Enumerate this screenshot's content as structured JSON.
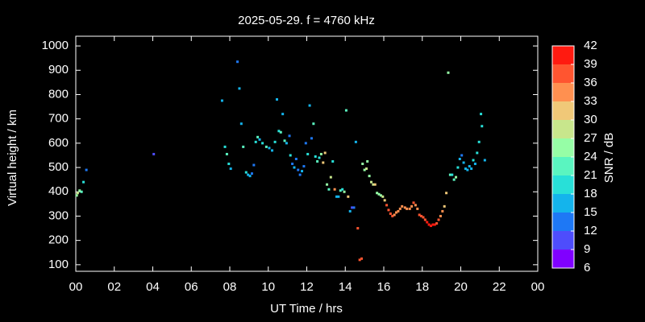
{
  "chart_data": {
    "type": "scatter",
    "title": "2025-05-29. f = 4760 kHz",
    "x_label": "UT Time / hrs",
    "y_label": "Virtual height / km",
    "xlim": [
      0,
      24
    ],
    "xticks": [
      {
        "value": 0,
        "label": "00"
      },
      {
        "value": 2,
        "label": "02"
      },
      {
        "value": 4,
        "label": "04"
      },
      {
        "value": 6,
        "label": "06"
      },
      {
        "value": 8,
        "label": "08"
      },
      10,
      12,
      14,
      16,
      18,
      20,
      22,
      {
        "value": 24,
        "label": "00"
      }
    ],
    "ylim": [
      73,
      1040
    ],
    "yticks": [
      100,
      200,
      300,
      400,
      500,
      600,
      700,
      800,
      900,
      1000
    ],
    "colorbar": {
      "label": "SNR / dB",
      "lim": [
        6,
        42
      ],
      "ticks": [
        6,
        9,
        12,
        15,
        18,
        21,
        24,
        27,
        30,
        33,
        36,
        39,
        42
      ],
      "colors": [
        "#8000ff",
        "#4e4dfc",
        "#1e78f5",
        "#14b4ec",
        "#28e0d8",
        "#5af5c0",
        "#96fea6",
        "#c8e68c",
        "#f0c878",
        "#ff9050",
        "#ff5530",
        "#ff1a10"
      ]
    },
    "x": [
      0.05,
      0.1,
      0.2,
      0.3,
      0.4,
      0.55,
      4.05,
      7.6,
      7.75,
      7.85,
      7.95,
      8.05,
      8.4,
      8.5,
      8.6,
      8.7,
      8.85,
      8.95,
      9.05,
      9.15,
      9.25,
      9.35,
      9.45,
      9.55,
      9.7,
      9.9,
      10.05,
      10.2,
      10.35,
      10.45,
      10.55,
      10.65,
      10.75,
      10.85,
      10.95,
      11.1,
      11.15,
      11.25,
      11.35,
      11.45,
      11.55,
      11.65,
      11.75,
      11.85,
      11.95,
      12.05,
      12.15,
      12.25,
      12.35,
      12.45,
      12.55,
      12.65,
      12.75,
      12.85,
      12.95,
      13.05,
      13.15,
      13.25,
      13.35,
      13.45,
      13.55,
      13.65,
      13.75,
      13.85,
      13.95,
      14.05,
      14.15,
      14.25,
      14.35,
      14.45,
      14.55,
      14.65,
      14.75,
      14.85,
      14.9,
      15.0,
      15.1,
      15.15,
      15.25,
      15.35,
      15.45,
      15.55,
      15.65,
      15.75,
      15.85,
      15.95,
      16.05,
      16.15,
      16.25,
      16.35,
      16.45,
      16.55,
      16.65,
      16.75,
      16.85,
      16.95,
      17.1,
      17.2,
      17.35,
      17.45,
      17.55,
      17.65,
      17.75,
      17.85,
      17.95,
      18.05,
      18.15,
      18.25,
      18.35,
      18.45,
      18.55,
      18.65,
      18.75,
      18.85,
      18.95,
      19.05,
      19.15,
      19.25,
      19.35,
      19.45,
      19.55,
      19.65,
      19.75,
      19.85,
      19.95,
      20.05,
      20.15,
      20.25,
      20.35,
      20.45,
      20.55,
      20.65,
      20.75,
      20.85,
      20.95,
      21.05,
      21.1,
      21.25
    ],
    "values": [
      385,
      395,
      405,
      400,
      440,
      490,
      555,
      775,
      585,
      555,
      515,
      495,
      935,
      825,
      680,
      585,
      480,
      470,
      465,
      475,
      510,
      605,
      625,
      615,
      600,
      585,
      580,
      570,
      605,
      780,
      650,
      645,
      720,
      610,
      600,
      630,
      550,
      515,
      500,
      535,
      490,
      470,
      485,
      505,
      600,
      555,
      755,
      620,
      680,
      545,
      525,
      540,
      555,
      520,
      560,
      430,
      410,
      460,
      525,
      410,
      380,
      380,
      405,
      410,
      400,
      735,
      380,
      320,
      335,
      335,
      605,
      250,
      120,
      125,
      515,
      490,
      495,
      525,
      465,
      440,
      430,
      430,
      395,
      390,
      385,
      380,
      365,
      345,
      325,
      310,
      300,
      305,
      315,
      320,
      330,
      340,
      335,
      330,
      330,
      340,
      355,
      345,
      330,
      305,
      300,
      295,
      285,
      275,
      265,
      260,
      265,
      265,
      270,
      285,
      300,
      320,
      340,
      395,
      890,
      470,
      470,
      450,
      460,
      500,
      535,
      550,
      520,
      495,
      490,
      505,
      495,
      530,
      515,
      560,
      605,
      720,
      670,
      530
    ],
    "snr": [
      24,
      27,
      24,
      21,
      18,
      12,
      9,
      15,
      18,
      21,
      18,
      15,
      12,
      15,
      15,
      21,
      18,
      15,
      15,
      12,
      12,
      18,
      21,
      15,
      18,
      21,
      15,
      15,
      18,
      15,
      18,
      21,
      15,
      21,
      15,
      12,
      18,
      12,
      15,
      12,
      12,
      12,
      15,
      12,
      12,
      18,
      15,
      12,
      21,
      18,
      21,
      18,
      24,
      30,
      30,
      24,
      21,
      27,
      18,
      33,
      15,
      15,
      21,
      18,
      24,
      21,
      30,
      15,
      9,
      12,
      15,
      36,
      36,
      36,
      24,
      24,
      27,
      24,
      24,
      27,
      27,
      30,
      24,
      24,
      24,
      27,
      30,
      36,
      36,
      36,
      36,
      33,
      33,
      33,
      33,
      33,
      33,
      33,
      33,
      33,
      36,
      33,
      33,
      36,
      36,
      36,
      36,
      39,
      39,
      39,
      39,
      39,
      36,
      36,
      33,
      33,
      30,
      30,
      24,
      21,
      18,
      21,
      24,
      18,
      15,
      12,
      15,
      15,
      15,
      15,
      15,
      18,
      15,
      18,
      18,
      18,
      18,
      15
    ]
  }
}
